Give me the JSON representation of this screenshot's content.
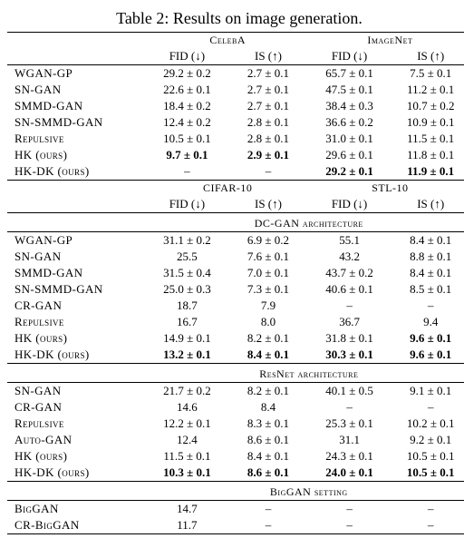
{
  "caption": "Table 2: Results on image generation.",
  "top": {
    "datasets": [
      "CelebA",
      "ImageNet"
    ],
    "metrics": [
      "FID (↓)",
      "IS (↑)",
      "FID (↓)",
      "IS (↑)"
    ],
    "rows": [
      {
        "m": "WGAN-GP",
        "v": [
          "29.2 ± 0.2",
          "2.7 ± 0.1",
          "65.7 ± 0.1",
          "7.5 ± 0.1"
        ],
        "b": [
          0,
          0,
          0,
          0
        ]
      },
      {
        "m": "SN-GAN",
        "v": [
          "22.6 ± 0.1",
          "2.7 ± 0.1",
          "47.5 ± 0.1",
          "11.2 ± 0.1"
        ],
        "b": [
          0,
          0,
          0,
          0
        ]
      },
      {
        "m": "SMMD-GAN",
        "v": [
          "18.4 ± 0.2",
          "2.7 ± 0.1",
          "38.4 ± 0.3",
          "10.7 ± 0.2"
        ],
        "b": [
          0,
          0,
          0,
          0
        ]
      },
      {
        "m": "SN-SMMD-GAN",
        "v": [
          "12.4 ± 0.2",
          "2.8 ± 0.1",
          "36.6 ± 0.2",
          "10.9 ± 0.1"
        ],
        "b": [
          0,
          0,
          0,
          0
        ]
      },
      {
        "m": "Repulsive",
        "v": [
          "10.5 ± 0.1",
          "2.8 ± 0.1",
          "31.0 ± 0.1",
          "11.5 ± 0.1"
        ],
        "b": [
          0,
          0,
          0,
          0
        ]
      },
      {
        "m": "HK (ours)",
        "v": [
          "9.7 ± 0.1",
          "2.9 ± 0.1",
          "29.6 ± 0.1",
          "11.8 ± 0.1"
        ],
        "b": [
          1,
          1,
          0,
          0
        ]
      },
      {
        "m": "HK-DK (ours)",
        "v": [
          "–",
          "–",
          "29.2 ± 0.1",
          "11.9 ± 0.1"
        ],
        "b": [
          0,
          0,
          1,
          1
        ]
      }
    ]
  },
  "bottom": {
    "datasets": [
      "CIFAR-10",
      "STL-10"
    ],
    "metrics": [
      "FID (↓)",
      "IS (↑)",
      "FID (↓)",
      "IS (↑)"
    ],
    "sections": [
      {
        "label": "DC-GAN architecture",
        "rows": [
          {
            "m": "WGAN-GP",
            "v": [
              "31.1 ± 0.2",
              "6.9 ± 0.2",
              "55.1",
              "8.4 ± 0.1"
            ],
            "b": [
              0,
              0,
              0,
              0
            ]
          },
          {
            "m": "SN-GAN",
            "v": [
              "25.5",
              "7.6 ± 0.1",
              "43.2",
              "8.8 ± 0.1"
            ],
            "b": [
              0,
              0,
              0,
              0
            ]
          },
          {
            "m": "SMMD-GAN",
            "v": [
              "31.5 ± 0.4",
              "7.0 ± 0.1",
              "43.7 ± 0.2",
              "8.4 ± 0.1"
            ],
            "b": [
              0,
              0,
              0,
              0
            ]
          },
          {
            "m": "SN-SMMD-GAN",
            "v": [
              "25.0 ± 0.3",
              "7.3 ± 0.1",
              "40.6 ± 0.1",
              "8.5 ± 0.1"
            ],
            "b": [
              0,
              0,
              0,
              0
            ]
          },
          {
            "m": "CR-GAN",
            "v": [
              "18.7",
              "7.9",
              "–",
              "–"
            ],
            "b": [
              0,
              0,
              0,
              0
            ]
          },
          {
            "m": "Repulsive",
            "v": [
              "16.7",
              "8.0",
              "36.7",
              "9.4"
            ],
            "b": [
              0,
              0,
              0,
              0
            ]
          },
          {
            "m": "HK (ours)",
            "v": [
              "14.9 ± 0.1",
              "8.2 ± 0.1",
              "31.8 ± 0.1",
              "9.6 ± 0.1"
            ],
            "b": [
              0,
              0,
              0,
              1
            ]
          },
          {
            "m": "HK-DK (ours)",
            "v": [
              "13.2 ± 0.1",
              "8.4 ± 0.1",
              "30.3 ± 0.1",
              "9.6 ± 0.1"
            ],
            "b": [
              1,
              1,
              1,
              1
            ]
          }
        ]
      },
      {
        "label": "ResNet architecture",
        "rows": [
          {
            "m": "SN-GAN",
            "v": [
              "21.7 ± 0.2",
              "8.2 ± 0.1",
              "40.1 ± 0.5",
              "9.1 ± 0.1"
            ],
            "b": [
              0,
              0,
              0,
              0
            ]
          },
          {
            "m": "CR-GAN",
            "v": [
              "14.6",
              "8.4",
              "–",
              "–"
            ],
            "b": [
              0,
              0,
              0,
              0
            ]
          },
          {
            "m": "Repulsive",
            "v": [
              "12.2 ± 0.1",
              "8.3 ± 0.1",
              "25.3 ± 0.1",
              "10.2 ± 0.1"
            ],
            "b": [
              0,
              0,
              0,
              0
            ]
          },
          {
            "m": "Auto-GAN",
            "v": [
              "12.4",
              "8.6 ± 0.1",
              "31.1",
              "9.2 ± 0.1"
            ],
            "b": [
              0,
              0,
              0,
              0
            ]
          },
          {
            "m": "HK (ours)",
            "v": [
              "11.5 ± 0.1",
              "8.4 ± 0.1",
              "24.3 ± 0.1",
              "10.5 ± 0.1"
            ],
            "b": [
              0,
              0,
              0,
              0
            ]
          },
          {
            "m": "HK-DK (ours)",
            "v": [
              "10.3 ± 0.1",
              "8.6 ± 0.1",
              "24.0 ± 0.1",
              "10.5 ± 0.1"
            ],
            "b": [
              1,
              1,
              1,
              1
            ]
          }
        ]
      },
      {
        "label": "BigGAN setting",
        "rows": [
          {
            "m": "BigGAN",
            "v": [
              "14.7",
              "–",
              "–",
              "–"
            ],
            "b": [
              0,
              0,
              0,
              0
            ]
          },
          {
            "m": "CR-BigGAN",
            "v": [
              "11.7",
              "–",
              "–",
              "–"
            ],
            "b": [
              0,
              0,
              0,
              0
            ]
          }
        ]
      }
    ]
  }
}
